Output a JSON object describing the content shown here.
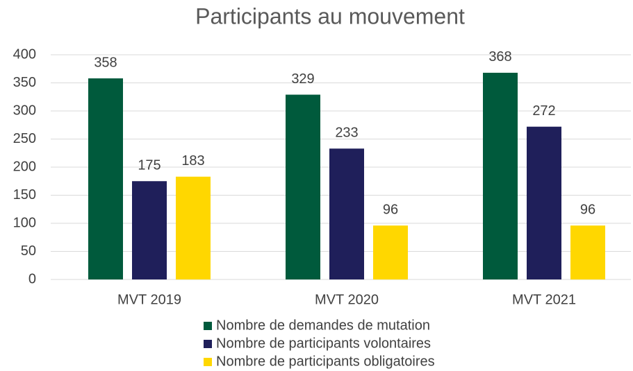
{
  "chart_data": {
    "type": "bar",
    "title": "Participants au mouvement",
    "categories": [
      "MVT 2019",
      "MVT 2020",
      "MVT 2021"
    ],
    "series": [
      {
        "name": "Nombre de demandes de mutation",
        "color": "#005A3C",
        "values": [
          358,
          329,
          368
        ]
      },
      {
        "name": "Nombre de participants volontaires",
        "color": "#1F1F5A",
        "values": [
          175,
          233,
          272
        ]
      },
      {
        "name": "Nombre de participants obligatoires",
        "color": "#FFD700",
        "values": [
          183,
          96,
          96
        ]
      }
    ],
    "ylim": [
      0,
      400
    ],
    "yticks": [
      0,
      50,
      100,
      150,
      200,
      250,
      300,
      350,
      400
    ],
    "grid": true,
    "legend": "bottom"
  }
}
